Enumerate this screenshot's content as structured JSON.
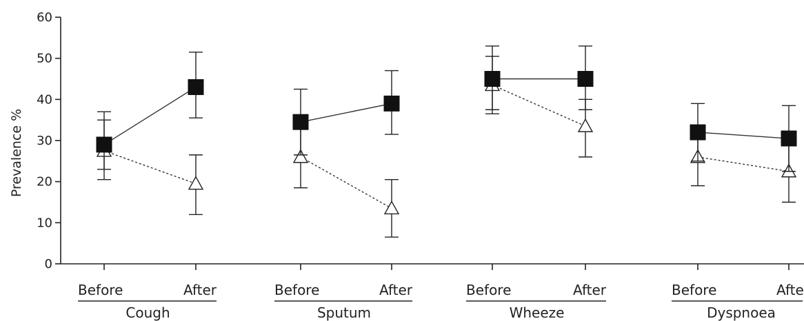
{
  "chart_data": {
    "type": "line",
    "ylabel": "Prevalence %",
    "ylim": [
      0,
      60
    ],
    "yticks": [
      0,
      10,
      20,
      30,
      40,
      50,
      60
    ],
    "grid": false,
    "conditions": [
      "Before",
      "After"
    ],
    "groups": [
      {
        "name": "Cough",
        "series": [
          {
            "marker": "filled-square",
            "values": [
              29,
              43
            ],
            "err_low": [
              23,
              35.5
            ],
            "err_high": [
              35,
              51.5
            ]
          },
          {
            "marker": "open-triangle",
            "values": [
              27.5,
              19.5
            ],
            "err_low": [
              20.5,
              12
            ],
            "err_high": [
              37,
              26.5
            ]
          }
        ]
      },
      {
        "name": "Sputum",
        "series": [
          {
            "marker": "filled-square",
            "values": [
              34.5,
              39
            ],
            "err_low": [
              26.5,
              31.5
            ],
            "err_high": [
              42.5,
              47
            ]
          },
          {
            "marker": "open-triangle",
            "values": [
              26,
              13.5
            ],
            "err_low": [
              18.5,
              6.5
            ],
            "err_high": [
              33,
              20.5
            ]
          }
        ]
      },
      {
        "name": "Wheeze",
        "series": [
          {
            "marker": "filled-square",
            "values": [
              45,
              45
            ],
            "err_low": [
              37.5,
              37.5
            ],
            "err_high": [
              53,
              53
            ]
          },
          {
            "marker": "open-triangle",
            "values": [
              43.5,
              33.5
            ],
            "err_low": [
              36.5,
              26
            ],
            "err_high": [
              50.5,
              40
            ]
          }
        ]
      },
      {
        "name": "Dyspnoea",
        "series": [
          {
            "marker": "filled-square",
            "values": [
              32,
              30.5
            ],
            "err_low": [
              25,
              22.5
            ],
            "err_high": [
              39,
              38.5
            ]
          },
          {
            "marker": "open-triangle",
            "values": [
              26,
              22.5
            ],
            "err_low": [
              19,
              15
            ],
            "err_high": [
              33,
              30
            ]
          }
        ]
      }
    ]
  },
  "colors": {
    "axis": "#222222",
    "square_fill": "#111111",
    "triangle_fill": "#ffffff",
    "line": "#333333"
  }
}
